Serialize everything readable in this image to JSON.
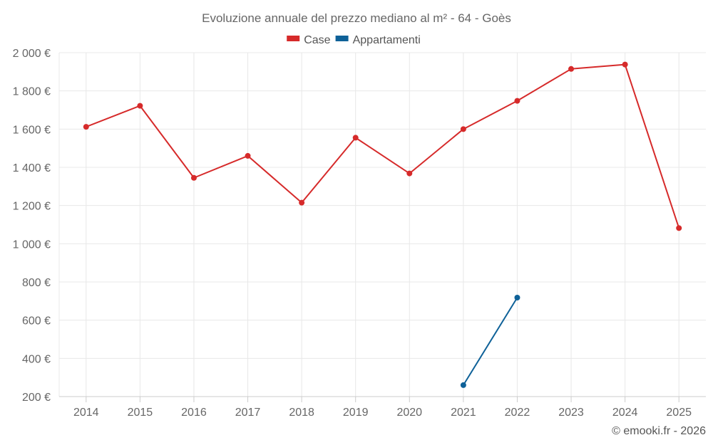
{
  "chart_data": {
    "type": "line",
    "title": "Evoluzione annuale del prezzo mediano al m² - 64 - Goès",
    "categories": [
      "2014",
      "2015",
      "2016",
      "2017",
      "2018",
      "2019",
      "2020",
      "2021",
      "2022",
      "2023",
      "2024",
      "2025"
    ],
    "series": [
      {
        "name": "Case",
        "color": "#d62a2a",
        "values": [
          1612,
          1722,
          1345,
          1460,
          1215,
          1555,
          1368,
          1600,
          1748,
          1915,
          1938,
          1082
        ]
      },
      {
        "name": "Appartamenti",
        "color": "#0e6198",
        "values": [
          null,
          null,
          null,
          null,
          null,
          null,
          null,
          260,
          718,
          null,
          null,
          null
        ]
      }
    ],
    "y_ticks": [
      200,
      400,
      600,
      800,
      1000,
      1200,
      1400,
      1600,
      1800,
      2000
    ],
    "y_tick_labels": [
      "200 €",
      "400 €",
      "600 €",
      "800 €",
      "1 000 €",
      "1 200 €",
      "1 400 €",
      "1 600 €",
      "1 800 €",
      "2 000 €"
    ],
    "ylim": [
      200,
      2000
    ],
    "xlabel": "",
    "ylabel": "",
    "grid": true,
    "legend": "top-center"
  },
  "credit": "© emooki.fr - 2026"
}
